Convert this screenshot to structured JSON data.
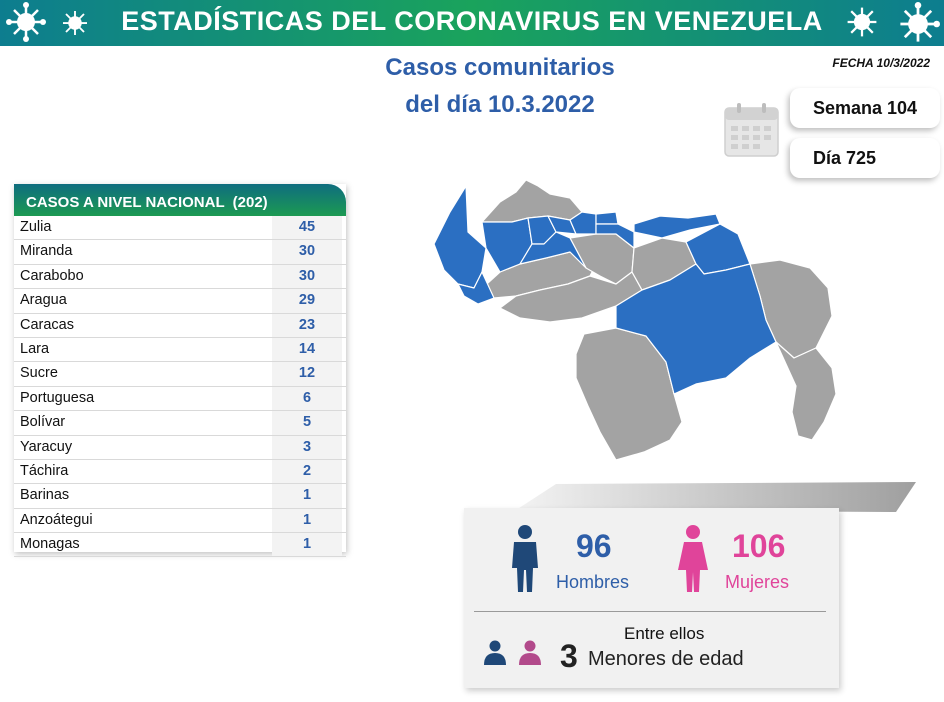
{
  "header": {
    "title": "ESTADÍSTICAS DEL CORONAVIRUS EN VENEZUELA"
  },
  "date_label": "FECHA 10/3/2022",
  "title": {
    "line1": "Casos comunitarios",
    "line2": "del día 10.3.2022"
  },
  "week": {
    "label": "Semana 104"
  },
  "day": {
    "label": "Día 725"
  },
  "table": {
    "heading": "CASOS A NIVEL NACIONAL",
    "total": "(202)",
    "rows": [
      {
        "state": "Zulia",
        "cases": "45"
      },
      {
        "state": "Miranda",
        "cases": "30"
      },
      {
        "state": "Carabobo",
        "cases": "30"
      },
      {
        "state": "Aragua",
        "cases": "29"
      },
      {
        "state": "Caracas",
        "cases": "23"
      },
      {
        "state": "Lara",
        "cases": "14"
      },
      {
        "state": "Sucre",
        "cases": "12"
      },
      {
        "state": "Portuguesa",
        "cases": "6"
      },
      {
        "state": "Bolívar",
        "cases": "5"
      },
      {
        "state": "Yaracuy",
        "cases": "3"
      },
      {
        "state": "Táchira",
        "cases": "2"
      },
      {
        "state": "Barinas",
        "cases": "1"
      },
      {
        "state": "Anzoátegui",
        "cases": "1"
      },
      {
        "state": "Monagas",
        "cases": "1"
      }
    ]
  },
  "gender": {
    "men": {
      "value": "96",
      "label": "Hombres",
      "color": "#2e5ea8",
      "icon": "man-icon"
    },
    "women": {
      "value": "106",
      "label": "Mujeres",
      "color": "#e0449a",
      "icon": "woman-icon"
    }
  },
  "minors": {
    "intro": "Entre ellos",
    "value": "3",
    "label": "Menores de edad"
  },
  "colors": {
    "affected": "#2b6fc2",
    "unaffected": "#a3a3a3",
    "header": "#0d7d8f"
  }
}
